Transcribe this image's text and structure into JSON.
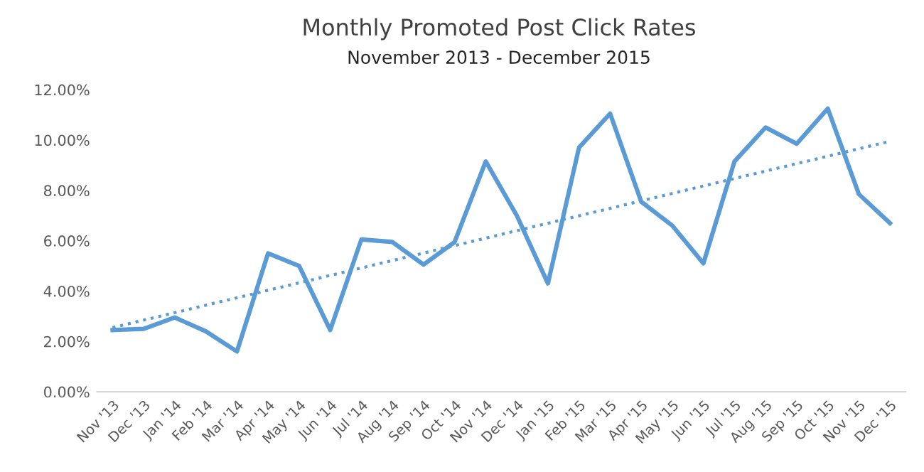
{
  "chart_data": {
    "type": "line",
    "title": "Monthly Promoted Post Click Rates",
    "subtitle": "November 2013 - December 2015",
    "categories": [
      "Nov '13",
      "Dec '13",
      "Jan '14",
      "Feb '14",
      "Mar '14",
      "Apr '14",
      "May '14",
      "Jun '14",
      "Jul '14",
      "Aug '14",
      "Sep '14",
      "Oct '14",
      "Nov '14",
      "Dec '14",
      "Jan '15",
      "Feb '15",
      "Mar '15",
      "Apr '15",
      "May '15",
      "Jun '15",
      "Jul '15",
      "Aug '15",
      "Sep '15",
      "Oct '15",
      "Nov '15",
      "Dec '15"
    ],
    "series": [
      {
        "color": "#5b9bd5",
        "line_style": "solid",
        "values": [
          2.45,
          2.5,
          2.95,
          2.4,
          1.6,
          5.5,
          5.0,
          2.45,
          6.05,
          5.95,
          5.05,
          5.95,
          9.15,
          7.0,
          4.3,
          9.7,
          11.05,
          7.55,
          6.6,
          5.1,
          9.15,
          10.5,
          9.85,
          11.25,
          7.85,
          6.7
        ]
      },
      {
        "type": "line",
        "color": "#5b9bd5",
        "line_style": "dotted",
        "x": [
          "Nov '13",
          "Dec '15"
        ],
        "values": [
          2.55,
          9.95
        ]
      }
    ],
    "ylim": [
      0,
      12
    ],
    "yticks": [
      {
        "value": 0,
        "label": "0.00%"
      },
      {
        "value": 2,
        "label": "2.00%"
      },
      {
        "value": 4,
        "label": "4.00%"
      },
      {
        "value": 6,
        "label": "6.00%"
      },
      {
        "value": 8,
        "label": "8.00%"
      },
      {
        "value": 10,
        "label": "10.00%"
      },
      {
        "value": 12,
        "label": "12.00%"
      }
    ],
    "grid": false,
    "marker": "none"
  }
}
